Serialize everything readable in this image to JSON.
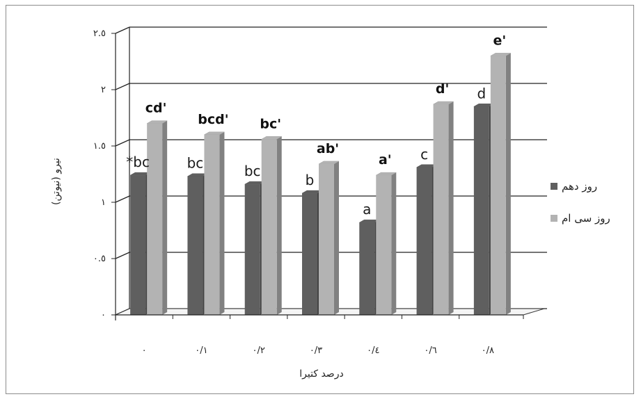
{
  "chart_data": {
    "type": "bar",
    "style": "3d-clustered-column",
    "categories": [
      "٠",
      "٠/١",
      "٠/٢",
      "٠/٣",
      "٠/٤",
      "٠/٦",
      "٠/٨"
    ],
    "series": [
      {
        "name": "روز دهم",
        "color": "#5f5f5f",
        "values": [
          1.24,
          1.23,
          1.16,
          1.08,
          0.82,
          1.31,
          1.85
        ],
        "labels": [
          "*bc",
          "bc",
          "bc",
          "b",
          "a",
          "c",
          "d"
        ]
      },
      {
        "name": "روز سی ام",
        "color": "#b3b3b3",
        "values": [
          1.7,
          1.6,
          1.56,
          1.34,
          1.24,
          1.87,
          2.3
        ],
        "labels": [
          "cd'",
          "bcd'",
          "bc'",
          "ab'",
          "a'",
          "d'",
          "e'"
        ]
      }
    ],
    "y_ticks": [
      "٠",
      "٠.٥",
      "١",
      "١.٥",
      "٢",
      "٢.٥"
    ],
    "ylim": [
      0,
      2.5
    ],
    "xlabel": "درصد کتیرا",
    "ylabel": "نیرو (نیوتن)",
    "grid": true,
    "legend_position": "right"
  }
}
